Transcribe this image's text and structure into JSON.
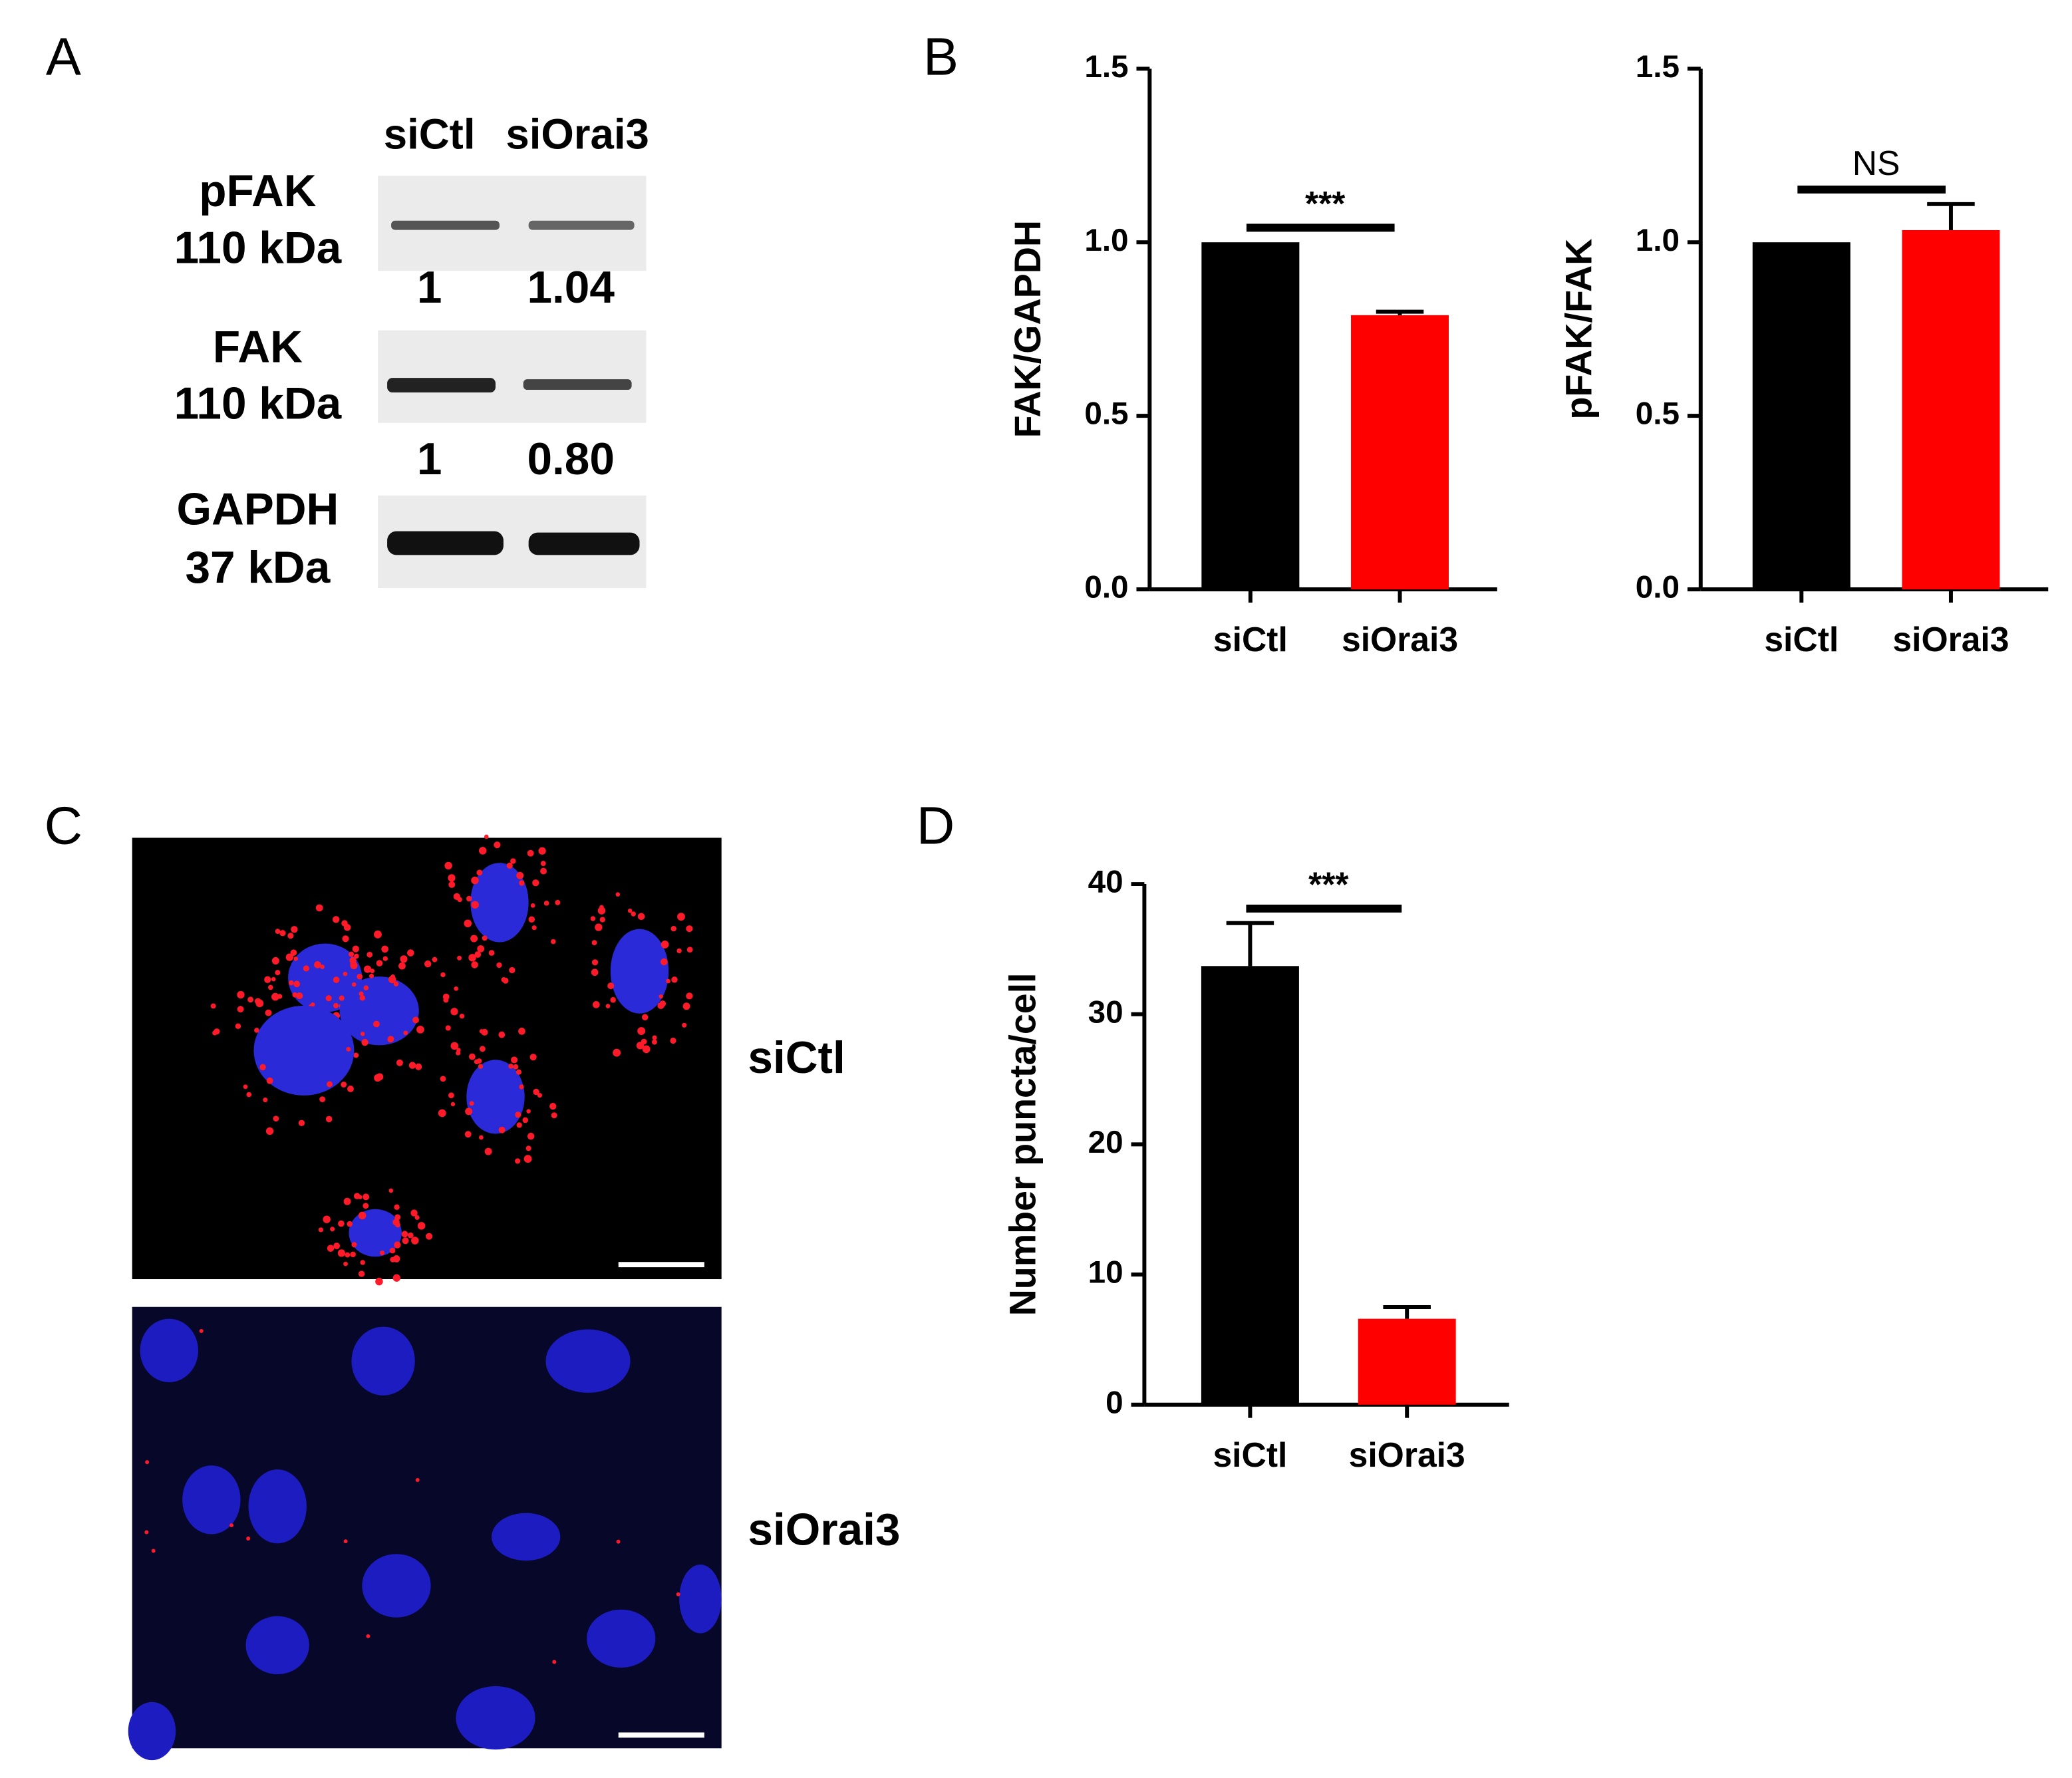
{
  "panels": [
    "A",
    "B",
    "C",
    "D"
  ],
  "blot": {
    "lanes": [
      "siCtl",
      "siOrai3"
    ],
    "rows": [
      {
        "protein": "pFAK",
        "size": "110 kDa",
        "quantification": [
          "1",
          "1.04"
        ]
      },
      {
        "protein": "FAK",
        "size": "110 kDa",
        "quantification": [
          "1",
          "0.80"
        ]
      },
      {
        "protein": "GAPDH",
        "size": "37 kDa"
      }
    ]
  },
  "micrographs": {
    "labels": [
      "siCtl",
      "siOrai3"
    ]
  },
  "chart_data": [
    {
      "type": "bar",
      "y_label": "FAK/GAPDH",
      "categories": [
        "siCtl",
        "siOrai3"
      ],
      "values": [
        1.0,
        0.79
      ],
      "errors": [
        null,
        0.01
      ],
      "colors": [
        "#000000",
        "#ff0000"
      ],
      "annotation": "***",
      "ylim": [
        0,
        1.5
      ],
      "yticks": [
        {
          "value": 0,
          "label": "0.0"
        },
        0.5,
        {
          "value": 1,
          "label": "1.0"
        },
        1.5
      ]
    },
    {
      "type": "bar",
      "y_label": "pFAK/FAK",
      "categories": [
        "siCtl",
        "siOrai3"
      ],
      "values": [
        1.0,
        1.035
      ],
      "errors": [
        null,
        0.075
      ],
      "colors": [
        "#000000",
        "#ff0000"
      ],
      "annotation": "NS",
      "ylim": [
        0,
        1.5
      ],
      "yticks": [
        {
          "value": 0,
          "label": "0.0"
        },
        0.5,
        {
          "value": 1,
          "label": "1.0"
        },
        1.5
      ]
    },
    {
      "type": "bar",
      "y_label": "Number puncta/cell",
      "categories": [
        "siCtl",
        "siOrai3"
      ],
      "values": [
        33.7,
        6.6
      ],
      "errors": [
        3.3,
        0.9
      ],
      "colors": [
        "#000000",
        "#ff0000"
      ],
      "annotation": "***",
      "ylim": [
        0,
        40
      ],
      "yticks": [
        0,
        10,
        20,
        30,
        40
      ]
    }
  ]
}
